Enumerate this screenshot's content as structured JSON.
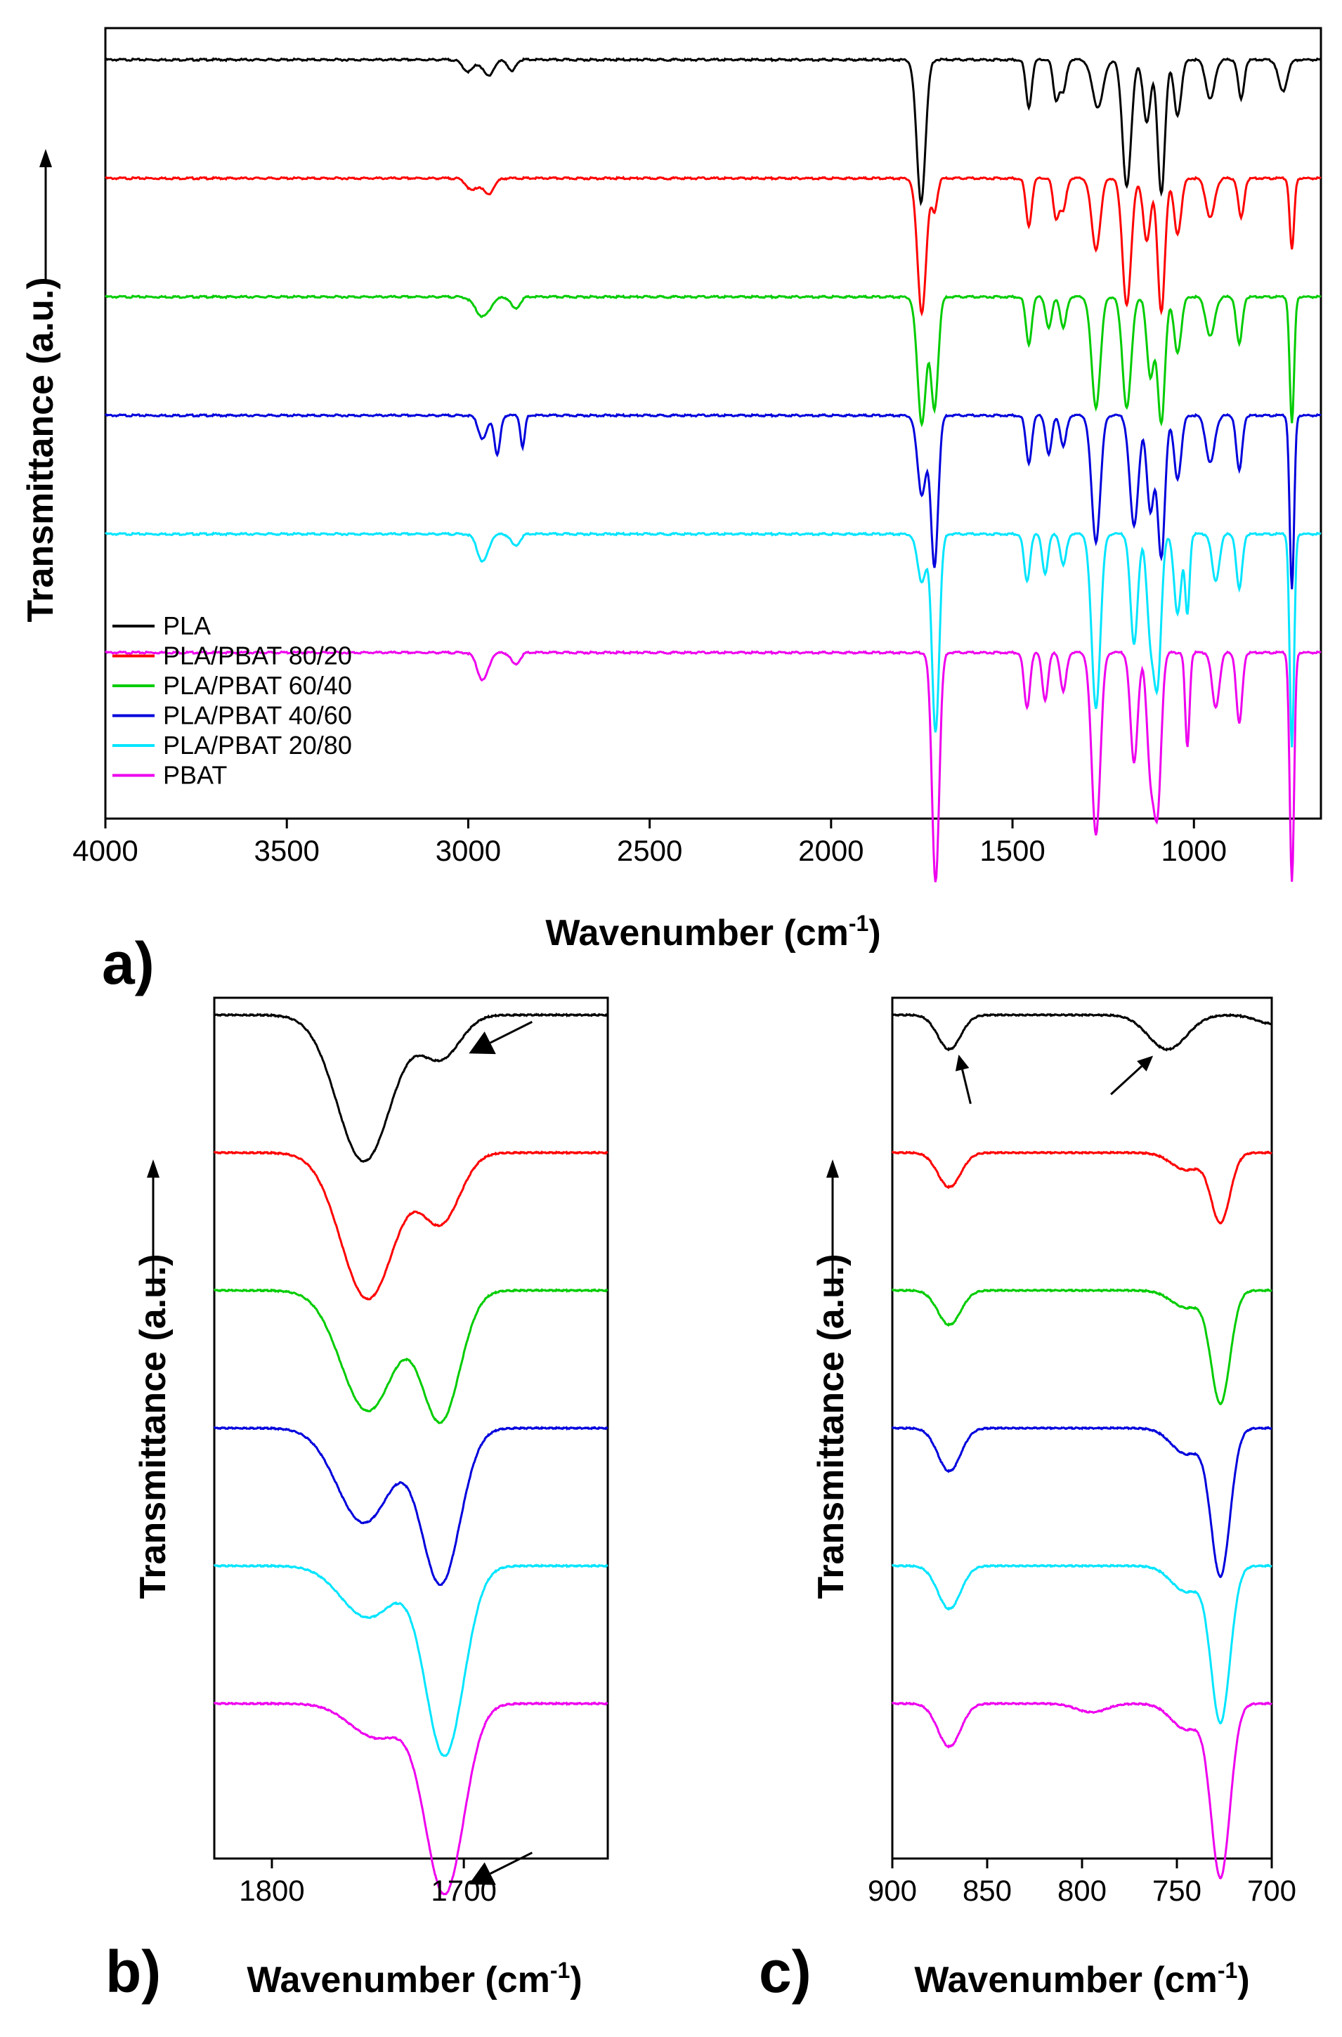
{
  "colors": {
    "PLA": "#000000",
    "PLA/PBAT 80/20": "#ff0000",
    "PLA/PBAT 60/40": "#00cc00",
    "PLA/PBAT 40/60": "#0000dd",
    "PLA/PBAT 20/80": "#00e5ff",
    "PBAT": "#ee00ee"
  },
  "chart_data": [
    {
      "panel": "a)",
      "type": "line",
      "xlabel": "Wavenumber (cm",
      "xlabel_sup": "-1",
      "xlabel_tail": ")",
      "ylabel": "Transmittance (a.u.)",
      "xlim": [
        4000,
        650
      ],
      "x_reversed": true,
      "xticks": [
        4000,
        3500,
        3000,
        2500,
        2000,
        1500,
        1000
      ],
      "ylim": [
        0,
        100
      ],
      "grid": false,
      "legend_position": "bottom-left",
      "series": [
        {
          "name": "PLA",
          "baseline": 96,
          "dips": [
            [
              3000,
              1.5,
              15
            ],
            [
              2945,
              2,
              15
            ],
            [
              2880,
              1.5,
              10
            ],
            [
              1752,
              18,
              12
            ],
            [
              1455,
              6,
              8
            ],
            [
              1380,
              5,
              8
            ],
            [
              1360,
              4,
              8
            ],
            [
              1265,
              6,
              15
            ],
            [
              1185,
              16,
              12
            ],
            [
              1130,
              8,
              10
            ],
            [
              1090,
              17,
              10
            ],
            [
              1045,
              7,
              10
            ],
            [
              955,
              5,
              12
            ],
            [
              870,
              5,
              8
            ],
            [
              755,
              4,
              12
            ]
          ]
        },
        {
          "name": "PLA/PBAT 80/20",
          "baseline": 81,
          "dips": [
            [
              2990,
              1.5,
              15
            ],
            [
              2945,
              2,
              15
            ],
            [
              1750,
              17,
              12
            ],
            [
              1715,
              4,
              8
            ],
            [
              1455,
              6,
              8
            ],
            [
              1380,
              5,
              8
            ],
            [
              1360,
              4,
              8
            ],
            [
              1270,
              9,
              12
            ],
            [
              1185,
              16,
              12
            ],
            [
              1130,
              8,
              10
            ],
            [
              1090,
              17,
              10
            ],
            [
              1045,
              7,
              10
            ],
            [
              955,
              5,
              12
            ],
            [
              870,
              5,
              8
            ],
            [
              730,
              9,
              6
            ]
          ]
        },
        {
          "name": "PLA/PBAT 60/40",
          "baseline": 66,
          "dips": [
            [
              2960,
              2.5,
              20
            ],
            [
              2870,
              1.5,
              12
            ],
            [
              1750,
              16,
              12
            ],
            [
              1715,
              14,
              10
            ],
            [
              1455,
              6,
              8
            ],
            [
              1400,
              4,
              8
            ],
            [
              1360,
              4,
              8
            ],
            [
              1270,
              14,
              12
            ],
            [
              1185,
              14,
              12
            ],
            [
              1120,
              10,
              10
            ],
            [
              1090,
              16,
              10
            ],
            [
              1045,
              7,
              10
            ],
            [
              955,
              5,
              12
            ],
            [
              875,
              6,
              8
            ],
            [
              730,
              16,
              6
            ]
          ]
        },
        {
          "name": "PLA/PBAT 40/60",
          "baseline": 51,
          "dips": [
            [
              2960,
              3,
              12
            ],
            [
              2920,
              5,
              8
            ],
            [
              2850,
              4,
              6
            ],
            [
              1750,
              10,
              12
            ],
            [
              1715,
              19,
              10
            ],
            [
              1455,
              6,
              8
            ],
            [
              1400,
              5,
              8
            ],
            [
              1360,
              4,
              8
            ],
            [
              1270,
              16,
              12
            ],
            [
              1165,
              14,
              12
            ],
            [
              1120,
              12,
              10
            ],
            [
              1090,
              18,
              10
            ],
            [
              1045,
              8,
              10
            ],
            [
              955,
              6,
              12
            ],
            [
              875,
              7,
              8
            ],
            [
              730,
              22,
              6
            ]
          ]
        },
        {
          "name": "PLA/PBAT 20/80",
          "baseline": 36,
          "dips": [
            [
              2960,
              3.5,
              15
            ],
            [
              2870,
              1.5,
              12
            ],
            [
              1750,
              6,
              12
            ],
            [
              1712,
              25,
              10
            ],
            [
              1460,
              6,
              8
            ],
            [
              1410,
              5,
              8
            ],
            [
              1360,
              4,
              8
            ],
            [
              1270,
              22,
              12
            ],
            [
              1165,
              14,
              10
            ],
            [
              1120,
              12,
              10
            ],
            [
              1100,
              18,
              10
            ],
            [
              1045,
              10,
              10
            ],
            [
              1018,
              10,
              6
            ],
            [
              940,
              6,
              10
            ],
            [
              875,
              7,
              8
            ],
            [
              730,
              27,
              6
            ]
          ]
        },
        {
          "name": "PBAT",
          "baseline": 21,
          "dips": [
            [
              2960,
              3.5,
              15
            ],
            [
              2870,
              1.5,
              12
            ],
            [
              1712,
              29,
              10
            ],
            [
              1460,
              7,
              8
            ],
            [
              1410,
              6,
              8
            ],
            [
              1360,
              5,
              8
            ],
            [
              1270,
              23,
              12
            ],
            [
              1165,
              14,
              10
            ],
            [
              1120,
              14,
              10
            ],
            [
              1100,
              19,
              10
            ],
            [
              1018,
              12,
              6
            ],
            [
              940,
              7,
              10
            ],
            [
              875,
              9,
              8
            ],
            [
              730,
              29,
              6
            ]
          ]
        }
      ]
    },
    {
      "panel": "b)",
      "type": "line",
      "xlabel": "Wavenumber (cm",
      "xlabel_sup": "-1",
      "xlabel_tail": ")",
      "ylabel": "Transmittance (a.u.)",
      "xlim": [
        1830,
        1625
      ],
      "x_reversed": true,
      "xticks": [
        1800,
        1700
      ],
      "ylim": [
        0,
        100
      ],
      "grid": false,
      "series": [
        {
          "name": "PLA",
          "baseline": 98,
          "dips": [
            [
              1752,
              17,
              14
            ],
            [
              1712,
              5,
              10
            ]
          ]
        },
        {
          "name": "PLA/PBAT 80/20",
          "baseline": 82,
          "dips": [
            [
              1750,
              17,
              14
            ],
            [
              1712,
              8,
              10
            ]
          ]
        },
        {
          "name": "PLA/PBAT 60/40",
          "baseline": 66,
          "dips": [
            [
              1750,
              14,
              14
            ],
            [
              1712,
              15,
              10
            ]
          ]
        },
        {
          "name": "PLA/PBAT 40/60",
          "baseline": 50,
          "dips": [
            [
              1752,
              11,
              14
            ],
            [
              1712,
              18,
              10
            ]
          ]
        },
        {
          "name": "PLA/PBAT 20/80",
          "baseline": 34,
          "dips": [
            [
              1750,
              6,
              14
            ],
            [
              1710,
              22,
              10
            ]
          ]
        },
        {
          "name": "PBAT",
          "baseline": 18,
          "dips": [
            [
              1745,
              4,
              14
            ],
            [
              1710,
              22,
              10
            ]
          ]
        }
      ],
      "annotations": [
        {
          "x": 1712,
          "series": "PLA"
        },
        {
          "x": 1712,
          "series": "PBAT"
        }
      ]
    },
    {
      "panel": "c)",
      "type": "line",
      "xlabel": "Wavenumber (cm",
      "xlabel_sup": "-1",
      "xlabel_tail": ")",
      "ylabel": "Transmittance (a.u.)",
      "xlim": [
        900,
        700
      ],
      "x_reversed": true,
      "xticks": [
        900,
        850,
        800,
        750,
        700
      ],
      "ylim": [
        0,
        100
      ],
      "grid": false,
      "series": [
        {
          "name": "PLA",
          "baseline": 98,
          "dips": [
            [
              870,
              4,
              6
            ],
            [
              755,
              4,
              10
            ],
            [
              700,
              1,
              8
            ]
          ]
        },
        {
          "name": "PLA/PBAT 80/20",
          "baseline": 82,
          "dips": [
            [
              870,
              4,
              6
            ],
            [
              745,
              2,
              8
            ],
            [
              727,
              8,
              5
            ]
          ]
        },
        {
          "name": "PLA/PBAT 60/40",
          "baseline": 66,
          "dips": [
            [
              870,
              4,
              6
            ],
            [
              745,
              2,
              8
            ],
            [
              727,
              13,
              5
            ]
          ]
        },
        {
          "name": "PLA/PBAT 40/60",
          "baseline": 50,
          "dips": [
            [
              870,
              5,
              6
            ],
            [
              745,
              3,
              8
            ],
            [
              727,
              17,
              5
            ]
          ]
        },
        {
          "name": "PLA/PBAT 20/80",
          "baseline": 34,
          "dips": [
            [
              870,
              5,
              6
            ],
            [
              745,
              3,
              8
            ],
            [
              727,
              18,
              5
            ]
          ]
        },
        {
          "name": "PBAT",
          "baseline": 18,
          "dips": [
            [
              870,
              5,
              6
            ],
            [
              795,
              1,
              8
            ],
            [
              745,
              3,
              8
            ],
            [
              727,
              20,
              5
            ]
          ]
        }
      ],
      "annotations": [
        {
          "x": 868,
          "series": "PLA"
        },
        {
          "x": 757,
          "series": "PLA"
        }
      ]
    }
  ]
}
